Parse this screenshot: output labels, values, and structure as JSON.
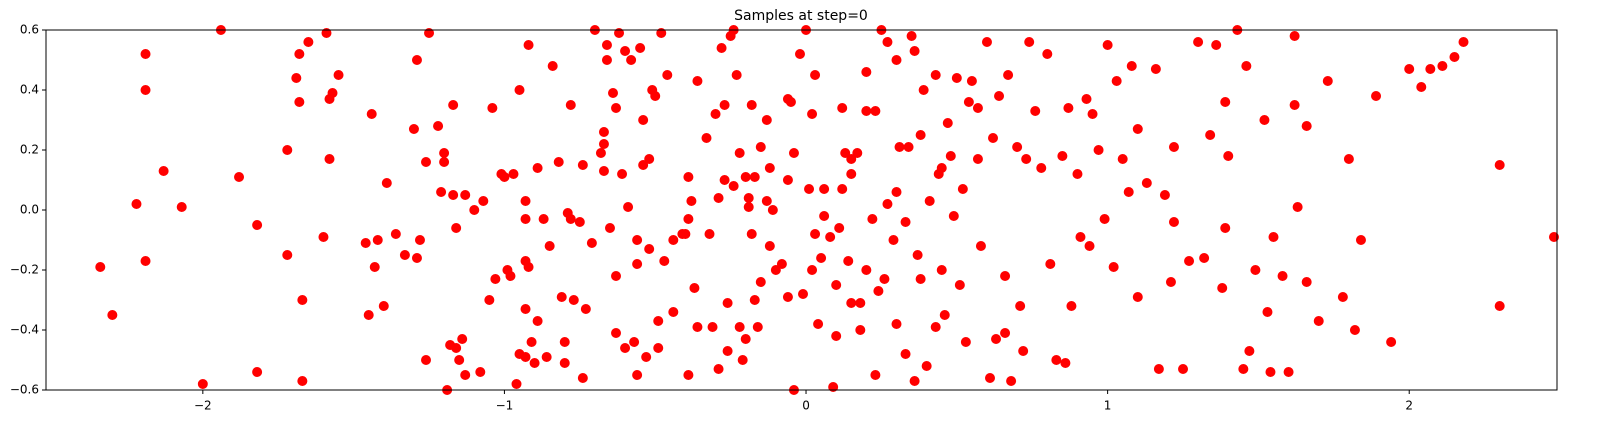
{
  "chart_data": {
    "type": "scatter",
    "title": "Samples at step=0",
    "color": "#ff0000",
    "x": [
      -2.34,
      -2.3,
      -2.22,
      -2.19,
      -2.19,
      -2.19,
      -2.13,
      -2.07,
      -2,
      -1.94,
      -1.88,
      -1.82,
      -1.82,
      -1.72,
      -1.72,
      -1.69,
      -1.68,
      -1.68,
      -1.67,
      -1.67,
      -1.65,
      -1.6,
      -1.59,
      -1.58,
      -1.58,
      -1.57,
      -1.55,
      -1.46,
      -1.45,
      -1.44,
      -1.43,
      -1.42,
      -1.4,
      -1.39,
      -1.36,
      -1.33,
      -1.3,
      -1.29,
      -1.29,
      -1.28,
      -1.26,
      -1.26,
      -1.25,
      -1.22,
      -1.21,
      -1.2,
      -1.2,
      -1.19,
      -1.18,
      -1.17,
      -1.16,
      -1.17,
      -1.16,
      -1.15,
      -1.14,
      -1.13,
      -1.13,
      -1.1,
      -1.08,
      -1.07,
      -1.05,
      -1.04,
      -1.03,
      -1.01,
      -1,
      -0.99,
      -0.98,
      -0.97,
      -0.96,
      -0.95,
      -0.95,
      -0.93,
      -0.93,
      -0.93,
      -0.93,
      -0.93,
      -0.92,
      -0.92,
      -0.91,
      -0.9,
      -0.89,
      -0.89,
      -0.87,
      -0.86,
      -0.85,
      -0.84,
      -0.82,
      -0.81,
      -0.8,
      -0.8,
      -0.79,
      -0.78,
      -0.78,
      -0.77,
      -0.75,
      -0.74,
      -0.74,
      -0.73,
      -0.71,
      -0.7,
      -0.68,
      -0.67,
      -0.67,
      -0.67,
      -0.66,
      -0.66,
      -0.65,
      -0.64,
      -0.63,
      -0.63,
      -0.63,
      -0.62,
      -0.61,
      -0.6,
      -0.6,
      -0.59,
      -0.58,
      -0.57,
      -0.56,
      -0.56,
      -0.56,
      -0.55,
      -0.54,
      -0.54,
      -0.53,
      -0.52,
      -0.52,
      -0.51,
      -0.5,
      -0.49,
      -0.49,
      -0.48,
      -0.47,
      -0.46,
      -0.44,
      -0.44,
      -0.41,
      -0.4,
      -0.39,
      -0.39,
      -0.39,
      -0.38,
      -0.37,
      -0.36,
      -0.36,
      -0.33,
      -0.32,
      -0.31,
      -0.3,
      -0.29,
      -0.29,
      -0.28,
      -0.27,
      -0.27,
      -0.26,
      -0.26,
      -0.25,
      -0.24,
      -0.24,
      -0.23,
      -0.22,
      -0.22,
      -0.21,
      -0.2,
      -0.2,
      -0.19,
      -0.19,
      -0.18,
      -0.18,
      -0.17,
      -0.17,
      -0.16,
      -0.15,
      -0.15,
      -0.13,
      -0.13,
      -0.12,
      -0.12,
      -0.11,
      -0.1,
      -0.08,
      -0.06,
      -0.06,
      -0.05,
      -0.04,
      -0.02,
      -0.01,
      0.01,
      0.02,
      0.03,
      0.05,
      0.08,
      0.09,
      0.1,
      0.11,
      0.13,
      0.14,
      0.15,
      0.15,
      0.17,
      0.18,
      0.2,
      0.22,
      0.23,
      0.23,
      0.24,
      0.25,
      0.26,
      0.27,
      0.29,
      0.3,
      0.3,
      0.31,
      0.33,
      0.35,
      0.36,
      0.37,
      0.38,
      0.38,
      0.39,
      0.4,
      0.41,
      0.43,
      0.43,
      0.44,
      0.45,
      0.46,
      0.47,
      0.48,
      0.49,
      0.5,
      0.51,
      0.52,
      0.53,
      0.54,
      0.55,
      0.57,
      0.57,
      0.58,
      0.6,
      0.61,
      0.62,
      0.63,
      0.64,
      0.66,
      0.66,
      0.67,
      0.68,
      0.7,
      0.71,
      0.72,
      0.73,
      0.74,
      0.76,
      0.78,
      0.8,
      0.81,
      0.83,
      0.85,
      0.86,
      0.87,
      0.88,
      0.9,
      0.91,
      0.93,
      0.94,
      0.95,
      0.97,
      0.99,
      1,
      1.02,
      1.03,
      1.05,
      1.07,
      1.08,
      1.1,
      1.1,
      1.13,
      1.16,
      1.17,
      1.19,
      1.21,
      1.22,
      1.22,
      1.25,
      1.27,
      1.3,
      1.32,
      1.34,
      1.36,
      1.38,
      1.39,
      1.39,
      1.4,
      1.43,
      1.45,
      1.46,
      1.47,
      1.49,
      1.52,
      1.53,
      1.54,
      1.55,
      1.58,
      1.6,
      1.62,
      1.62,
      1.63,
      1.66,
      1.66,
      1.7,
      1.73,
      1.78,
      1.8,
      1.82,
      1.84,
      1.89,
      1.94,
      2,
      2.04,
      2.07,
      2.11,
      2.15,
      2.18,
      2.3,
      2.3,
      2.48,
      0,
      0.03,
      0.02,
      -0.04,
      -0.06,
      0.04,
      0.06,
      0.12,
      0.2,
      0.27,
      0.3,
      0.34,
      0.15,
      0.18,
      0.2,
      0.33,
      0.36,
      0.45,
      0.1,
      0.12,
      0.06
    ],
    "values": [
      -0.19,
      -0.35,
      0.02,
      0.52,
      0.4,
      -0.17,
      0.13,
      0.01,
      -0.58,
      0.6,
      0.11,
      -0.54,
      -0.05,
      0.2,
      -0.15,
      0.44,
      0.52,
      0.36,
      -0.3,
      -0.57,
      0.56,
      -0.09,
      0.59,
      0.37,
      0.17,
      0.39,
      0.45,
      -0.11,
      -0.35,
      0.32,
      -0.19,
      -0.1,
      -0.32,
      0.09,
      -0.08,
      -0.15,
      0.27,
      0.5,
      -0.16,
      -0.1,
      0.16,
      -0.5,
      0.59,
      0.28,
      0.06,
      0.19,
      0.16,
      -0.6,
      -0.45,
      0.35,
      -0.06,
      0.05,
      -0.46,
      -0.5,
      -0.43,
      0.05,
      -0.55,
      0,
      -0.54,
      0.03,
      -0.3,
      0.34,
      -0.23,
      0.12,
      0.11,
      -0.2,
      -0.22,
      0.12,
      -0.58,
      -0.48,
      0.4,
      -0.49,
      0.03,
      -0.03,
      -0.17,
      -0.33,
      -0.19,
      0.55,
      -0.44,
      -0.51,
      -0.37,
      0.14,
      -0.03,
      -0.49,
      -0.12,
      0.48,
      0.16,
      -0.29,
      -0.44,
      -0.51,
      -0.01,
      -0.03,
      0.35,
      -0.3,
      -0.04,
      0.15,
      -0.56,
      -0.33,
      -0.11,
      0.6,
      0.19,
      0.26,
      0.22,
      0.13,
      0.5,
      0.55,
      -0.06,
      0.39,
      -0.22,
      0.34,
      -0.41,
      0.59,
      0.12,
      0.53,
      -0.46,
      0.01,
      0.5,
      -0.44,
      -0.1,
      -0.18,
      -0.55,
      0.54,
      0.15,
      0.3,
      -0.49,
      0.17,
      -0.13,
      0.4,
      0.38,
      -0.37,
      -0.46,
      0.59,
      -0.17,
      0.45,
      -0.34,
      -0.1,
      -0.08,
      -0.08,
      -0.55,
      0.11,
      -0.03,
      0.03,
      -0.26,
      -0.39,
      0.43,
      0.24,
      -0.08,
      -0.39,
      0.32,
      0.04,
      -0.53,
      0.54,
      0.1,
      0.35,
      -0.31,
      -0.47,
      0.58,
      0.6,
      0.08,
      0.45,
      -0.39,
      0.19,
      -0.5,
      0.11,
      -0.43,
      0.04,
      0.01,
      0.35,
      -0.08,
      -0.3,
      0.11,
      -0.39,
      -0.24,
      0.21,
      0.03,
      0.3,
      -0.12,
      0.14,
      0,
      -0.2,
      -0.18,
      -0.29,
      0.37,
      0.36,
      -0.6,
      0.52,
      -0.28,
      0.07,
      -0.2,
      -0.08,
      -0.16,
      -0.09,
      -0.59,
      -0.42,
      -0.06,
      0.19,
      -0.17,
      0.12,
      0.17,
      0.19,
      -0.4,
      0.33,
      -0.03,
      0.33,
      -0.55,
      -0.27,
      0.6,
      -0.23,
      0.02,
      -0.1,
      0.06,
      -0.38,
      0.21,
      -0.04,
      0.58,
      0.53,
      -0.15,
      0.25,
      -0.23,
      0.4,
      -0.52,
      0.03,
      0.45,
      -0.39,
      0.12,
      0.14,
      -0.35,
      0.29,
      0.18,
      -0.02,
      0.44,
      -0.25,
      0.07,
      -0.44,
      0.36,
      0.43,
      0.34,
      0.17,
      -0.12,
      0.56,
      -0.56,
      0.24,
      -0.43,
      0.38,
      -0.41,
      -0.22,
      0.45,
      -0.57,
      0.21,
      -0.32,
      -0.47,
      0.17,
      0.56,
      0.33,
      0.14,
      0.52,
      -0.18,
      -0.5,
      0.18,
      -0.51,
      0.34,
      -0.32,
      0.12,
      -0.09,
      0.37,
      -0.12,
      0.32,
      0.2,
      -0.03,
      0.55,
      -0.19,
      0.43,
      0.17,
      0.06,
      0.48,
      -0.29,
      0.27,
      0.09,
      0.47,
      -0.53,
      0.05,
      -0.24,
      0.21,
      -0.04,
      -0.53,
      -0.17,
      0.56,
      -0.16,
      0.25,
      0.55,
      -0.26,
      0.36,
      -0.06,
      0.18,
      0.6,
      -0.53,
      0.48,
      -0.47,
      -0.2,
      0.3,
      -0.34,
      -0.54,
      -0.09,
      -0.22,
      -0.54,
      0.58,
      0.35,
      0.01,
      0.28,
      -0.24,
      -0.37,
      0.43,
      -0.29,
      0.17,
      -0.4,
      -0.1,
      0.38,
      -0.44,
      0.47,
      0.41,
      0.47,
      0.48,
      0.51,
      0.56,
      0.15,
      -0.32,
      -0.09,
      0.6,
      0.45,
      0.32,
      0.19,
      0.1,
      -0.38,
      -0.02,
      0.34,
      0.46,
      0.56,
      0.5,
      0.21,
      -0.31,
      -0.31,
      -0.2,
      -0.48,
      -0.57,
      -0.2,
      -0.25,
      0.07,
      0.07
    ],
    "xlim": [
      -2.52,
      2.49
    ],
    "ylim": [
      -0.6,
      0.6
    ],
    "xticks": [
      {
        "value": -2,
        "label": "−2"
      },
      {
        "value": -1,
        "label": "−1"
      },
      0,
      1,
      2
    ],
    "yticks": [
      {
        "value": -0.6,
        "label": "−0.6"
      },
      {
        "value": -0.4,
        "label": "−0.4"
      },
      {
        "value": -0.2,
        "label": "−0.2"
      },
      {
        "value": 0,
        "label": "0.0"
      },
      0.2,
      0.4,
      0.6
    ]
  }
}
